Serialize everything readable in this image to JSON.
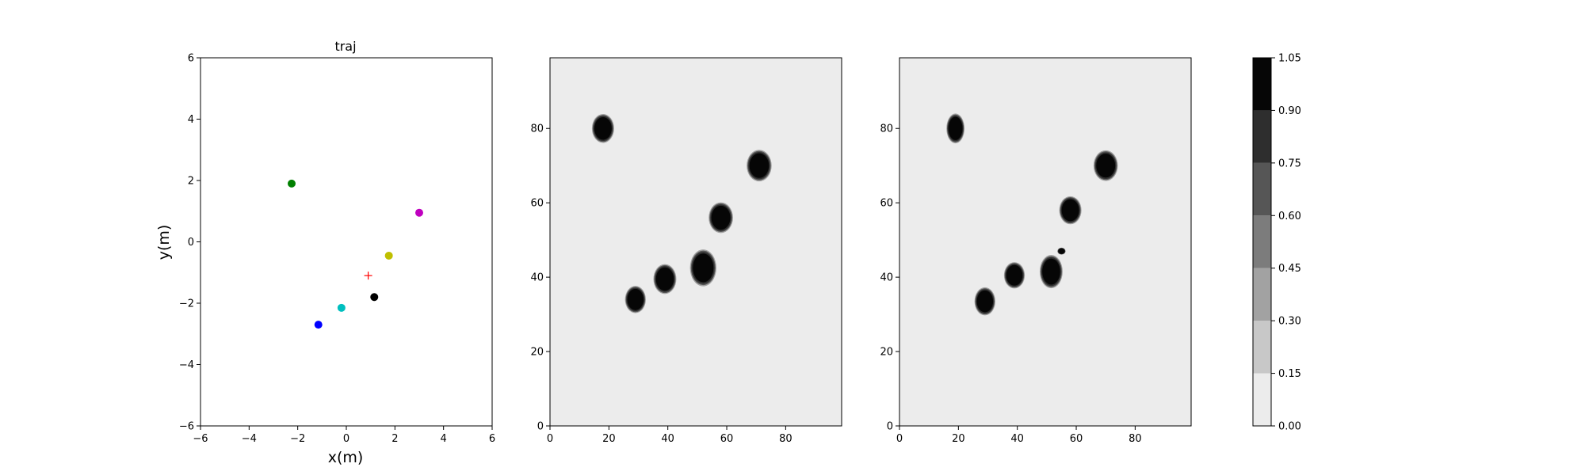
{
  "chart_data": [
    {
      "type": "scatter",
      "title": "traj",
      "xlabel": "x(m)",
      "ylabel": "y(m)",
      "xlim": [
        -6,
        6
      ],
      "ylim": [
        -6,
        6
      ],
      "xticks": [
        "−6",
        "−4",
        "−2",
        "0",
        "2",
        "4",
        "6"
      ],
      "yticks": [
        "−6",
        "−4",
        "−2",
        "0",
        "2",
        "4",
        "6"
      ],
      "grid": false,
      "points": [
        {
          "x": -2.25,
          "y": 1.9,
          "color": "#008000",
          "marker": "circle"
        },
        {
          "x": 3.0,
          "y": 0.95,
          "color": "#bf00bf",
          "marker": "circle"
        },
        {
          "x": 1.75,
          "y": -0.45,
          "color": "#bfbf00",
          "marker": "circle"
        },
        {
          "x": 0.9,
          "y": -1.1,
          "color": "#ff0000",
          "marker": "plus"
        },
        {
          "x": 1.15,
          "y": -1.8,
          "color": "#000000",
          "marker": "circle"
        },
        {
          "x": -0.2,
          "y": -2.15,
          "color": "#00bfbf",
          "marker": "circle"
        },
        {
          "x": -1.15,
          "y": -2.7,
          "color": "#0000ff",
          "marker": "circle"
        }
      ]
    },
    {
      "type": "heatmap",
      "xlim": [
        0,
        99
      ],
      "ylim": [
        0,
        99
      ],
      "xticks": [
        "0",
        "20",
        "40",
        "60",
        "80"
      ],
      "yticks": [
        "0",
        "20",
        "40",
        "60",
        "80"
      ],
      "background_value": 0.07,
      "blobs": [
        {
          "x": 18,
          "y": 80,
          "rx": 3.2,
          "ry": 3.3
        },
        {
          "x": 29,
          "y": 34,
          "rx": 3.0,
          "ry": 3.1
        },
        {
          "x": 39,
          "y": 39.5,
          "rx": 3.3,
          "ry": 3.4
        },
        {
          "x": 52,
          "y": 42.5,
          "rx": 3.8,
          "ry": 4.2
        },
        {
          "x": 58,
          "y": 56,
          "rx": 3.5,
          "ry": 3.5
        },
        {
          "x": 71,
          "y": 70,
          "rx": 3.6,
          "ry": 3.6
        }
      ]
    },
    {
      "type": "heatmap",
      "xlim": [
        0,
        99
      ],
      "ylim": [
        0,
        99
      ],
      "xticks": [
        "0",
        "20",
        "40",
        "60",
        "80"
      ],
      "yticks": [
        "0",
        "20",
        "40",
        "60",
        "80"
      ],
      "background_value": 0.07,
      "blobs": [
        {
          "x": 19,
          "y": 80,
          "rx": 2.6,
          "ry": 3.4
        },
        {
          "x": 29,
          "y": 33.5,
          "rx": 3.0,
          "ry": 3.2
        },
        {
          "x": 39,
          "y": 40.5,
          "rx": 3.0,
          "ry": 3.0
        },
        {
          "x": 51.5,
          "y": 41.5,
          "rx": 3.3,
          "ry": 3.8
        },
        {
          "x": 55,
          "y": 47,
          "rx": 1.2,
          "ry": 0.8
        },
        {
          "x": 58,
          "y": 58,
          "rx": 3.2,
          "ry": 3.2
        },
        {
          "x": 70,
          "y": 70,
          "rx": 3.5,
          "ry": 3.5
        }
      ]
    }
  ],
  "colorbar": {
    "levels": [
      "0.00",
      "0.15",
      "0.30",
      "0.45",
      "0.60",
      "0.75",
      "0.90",
      "1.05"
    ],
    "colors": [
      "#ececec",
      "#c8c8c8",
      "#a2a2a2",
      "#7c7c7c",
      "#565656",
      "#2e2e2e",
      "#060606"
    ]
  }
}
